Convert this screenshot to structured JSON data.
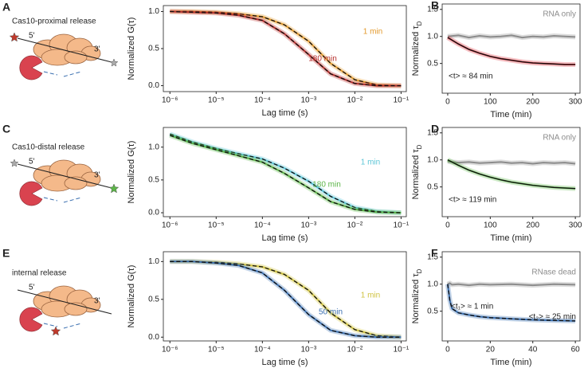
{
  "schematics": [
    {
      "title": "Cas10-proximal release",
      "five": "5'",
      "three": "3'"
    },
    {
      "title": "Cas10-distal release",
      "five": "5'",
      "three": "3'"
    },
    {
      "title": "internal release",
      "five": "5'",
      "three": "3'"
    }
  ],
  "chart_data": [
    {
      "type": "line",
      "panel": "A",
      "log_x": true,
      "xlabel": "Lag time (s)",
      "ylabel": "Normalized G(τ)",
      "x": [
        1e-06,
        3e-06,
        1e-05,
        3e-05,
        0.0001,
        0.0003,
        0.001,
        0.003,
        0.01,
        0.03,
        0.1
      ],
      "xlim": [
        7.2e-07,
        0.13
      ],
      "xticks": [
        {
          "value": 1e-06,
          "label": "10⁻⁶"
        },
        {
          "value": 1e-05,
          "label": "10⁻⁵"
        },
        {
          "value": 0.0001,
          "label": "10⁻⁴"
        },
        {
          "value": 0.001,
          "label": "10⁻³"
        },
        {
          "value": 0.01,
          "label": "10⁻²"
        },
        {
          "value": 0.1,
          "label": "10⁻¹"
        }
      ],
      "ylim": [
        -0.08,
        1.08
      ],
      "yticks": [
        {
          "value": 0,
          "label": "0.0"
        },
        {
          "value": 0.5,
          "label": "0.5"
        },
        {
          "value": 1,
          "label": "1.0"
        }
      ],
      "series": [
        {
          "name": "1 min",
          "color": "#e39a2d",
          "values": [
            1.0,
            1.0,
            0.99,
            0.97,
            0.93,
            0.82,
            0.6,
            0.3,
            0.08,
            0.01,
            0.0
          ]
        },
        {
          "name": "180 min",
          "color": "#b8312f",
          "values": [
            1.0,
            0.99,
            0.98,
            0.95,
            0.88,
            0.7,
            0.42,
            0.16,
            0.03,
            0.0,
            0.0
          ]
        }
      ]
    },
    {
      "type": "line",
      "panel": "B",
      "xlabel": "Time (min)",
      "ylabel": "Normalized τD",
      "x": [
        0,
        25,
        50,
        75,
        100,
        125,
        150,
        175,
        200,
        225,
        250,
        275,
        300
      ],
      "xlim": [
        -13,
        311
      ],
      "xticks": [
        0,
        100,
        200,
        300
      ],
      "ylim": [
        -0.05,
        1.6
      ],
      "yticks": [
        {
          "value": 0.5,
          "label": "0.5"
        },
        {
          "value": 1,
          "label": "1.0"
        },
        {
          "value": 1.5,
          "label": "1.5"
        }
      ],
      "series": [
        {
          "name": "RNA only",
          "color": "#8c8c8c",
          "values": [
            1.0,
            1.02,
            0.98,
            1.01,
            0.99,
            1.0,
            1.02,
            0.98,
            1.0,
            0.99,
            1.01,
            1.0,
            0.99
          ]
        },
        {
          "color": "#d9343f",
          "values": [
            0.98,
            0.86,
            0.76,
            0.69,
            0.63,
            0.59,
            0.56,
            0.53,
            0.51,
            0.5,
            0.49,
            0.48,
            0.48
          ]
        }
      ],
      "annotations": [
        "<t> ≈ 84 min"
      ]
    },
    {
      "type": "line",
      "panel": "C",
      "log_x": true,
      "xlabel": "Lag time (s)",
      "ylabel": "Normalized G(τ)",
      "x": [
        1e-06,
        3e-06,
        1e-05,
        3e-05,
        0.0001,
        0.0003,
        0.001,
        0.003,
        0.01,
        0.03,
        0.1
      ],
      "xlim": [
        7.2e-07,
        0.13
      ],
      "xticks": [
        {
          "value": 1e-06,
          "label": "10⁻⁶"
        },
        {
          "value": 1e-05,
          "label": "10⁻⁵"
        },
        {
          "value": 0.0001,
          "label": "10⁻⁴"
        },
        {
          "value": 0.001,
          "label": "10⁻³"
        },
        {
          "value": 0.01,
          "label": "10⁻²"
        },
        {
          "value": 0.1,
          "label": "10⁻¹"
        }
      ],
      "ylim": [
        -0.06,
        1.3
      ],
      "yticks": [
        {
          "value": 0,
          "label": "0.0"
        },
        {
          "value": 0.5,
          "label": "0.5"
        },
        {
          "value": 1,
          "label": "1.0"
        }
      ],
      "series": [
        {
          "name": "1 min",
          "color": "#5bc5d6",
          "values": [
            1.2,
            1.08,
            0.98,
            0.9,
            0.82,
            0.68,
            0.48,
            0.25,
            0.08,
            0.02,
            0.0
          ]
        },
        {
          "name": "180 min",
          "color": "#5cb548",
          "values": [
            1.18,
            1.06,
            0.96,
            0.87,
            0.77,
            0.6,
            0.38,
            0.17,
            0.05,
            0.01,
            0.0
          ]
        }
      ]
    },
    {
      "type": "line",
      "panel": "D",
      "xlabel": "Time (min)",
      "ylabel": "Normalized τD",
      "x": [
        0,
        25,
        50,
        75,
        100,
        125,
        150,
        175,
        200,
        225,
        250,
        275,
        300
      ],
      "xlim": [
        -13,
        311
      ],
      "xticks": [
        0,
        100,
        200,
        300
      ],
      "ylim": [
        -0.05,
        1.6
      ],
      "yticks": [
        {
          "value": 0.5,
          "label": "0.5"
        },
        {
          "value": 1,
          "label": "1.0"
        },
        {
          "value": 1.5,
          "label": "1.5"
        }
      ],
      "series": [
        {
          "name": "RNA only",
          "color": "#8c8c8c",
          "values": [
            0.97,
            0.95,
            0.96,
            0.94,
            0.95,
            0.96,
            0.94,
            0.95,
            0.93,
            0.95,
            0.94,
            0.95,
            0.93
          ]
        },
        {
          "color": "#5cb548",
          "values": [
            1.0,
            0.9,
            0.81,
            0.74,
            0.68,
            0.63,
            0.59,
            0.56,
            0.53,
            0.51,
            0.49,
            0.48,
            0.47
          ]
        }
      ],
      "annotations": [
        "<t> ≈ 119 min"
      ]
    },
    {
      "type": "line",
      "panel": "E",
      "log_x": true,
      "xlabel": "Lag time (s)",
      "ylabel": "Normalized G(τ)",
      "x": [
        1e-06,
        3e-06,
        1e-05,
        3e-05,
        0.0001,
        0.0003,
        0.001,
        0.003,
        0.01,
        0.03,
        0.1
      ],
      "xlim": [
        7.2e-07,
        0.13
      ],
      "xticks": [
        {
          "value": 1e-06,
          "label": "10⁻⁶"
        },
        {
          "value": 1e-05,
          "label": "10⁻⁵"
        },
        {
          "value": 0.0001,
          "label": "10⁻⁴"
        },
        {
          "value": 0.001,
          "label": "10⁻³"
        },
        {
          "value": 0.01,
          "label": "10⁻²"
        },
        {
          "value": 0.1,
          "label": "10⁻¹"
        }
      ],
      "ylim": [
        -0.05,
        1.13
      ],
      "yticks": [
        {
          "value": 0,
          "label": "0.0"
        },
        {
          "value": 0.5,
          "label": "0.5"
        },
        {
          "value": 1,
          "label": "1.0"
        }
      ],
      "series": [
        {
          "name": "1 min",
          "color": "#cfc23f",
          "values": [
            1.0,
            1.0,
            0.99,
            0.97,
            0.93,
            0.83,
            0.62,
            0.32,
            0.1,
            0.02,
            0.0
          ]
        },
        {
          "name": "50 min",
          "color": "#3a6fb0",
          "values": [
            1.0,
            1.0,
            0.98,
            0.95,
            0.85,
            0.62,
            0.3,
            0.09,
            0.02,
            0.0,
            0.0
          ]
        }
      ]
    },
    {
      "type": "line",
      "panel": "F",
      "xlabel": "Time (min)",
      "ylabel": "Normalized τD",
      "x": [
        0,
        1,
        2,
        5,
        10,
        15,
        20,
        30,
        40,
        50,
        60
      ],
      "xlim": [
        -2.6,
        62.2
      ],
      "xticks": [
        0,
        20,
        40,
        60
      ],
      "ylim": [
        -0.05,
        1.6
      ],
      "yticks": [
        {
          "value": 0.5,
          "label": "0.5"
        },
        {
          "value": 1,
          "label": "1.0"
        },
        {
          "value": 1.5,
          "label": "1.5"
        }
      ],
      "series": [
        {
          "name": "RNase dead",
          "color": "#8c8c8c",
          "values": [
            1.0,
            1.02,
            0.99,
            1.0,
            0.98,
            1.0,
            0.99,
            1.0,
            0.98,
            1.0,
            0.99
          ]
        },
        {
          "color": "#3a6fb0",
          "values": [
            1.0,
            0.7,
            0.55,
            0.47,
            0.43,
            0.4,
            0.38,
            0.36,
            0.34,
            0.33,
            0.32
          ]
        }
      ],
      "annotations": [
        "<t₁> ≈ 1 min",
        "<t₂> ≈ 25 min"
      ]
    }
  ]
}
